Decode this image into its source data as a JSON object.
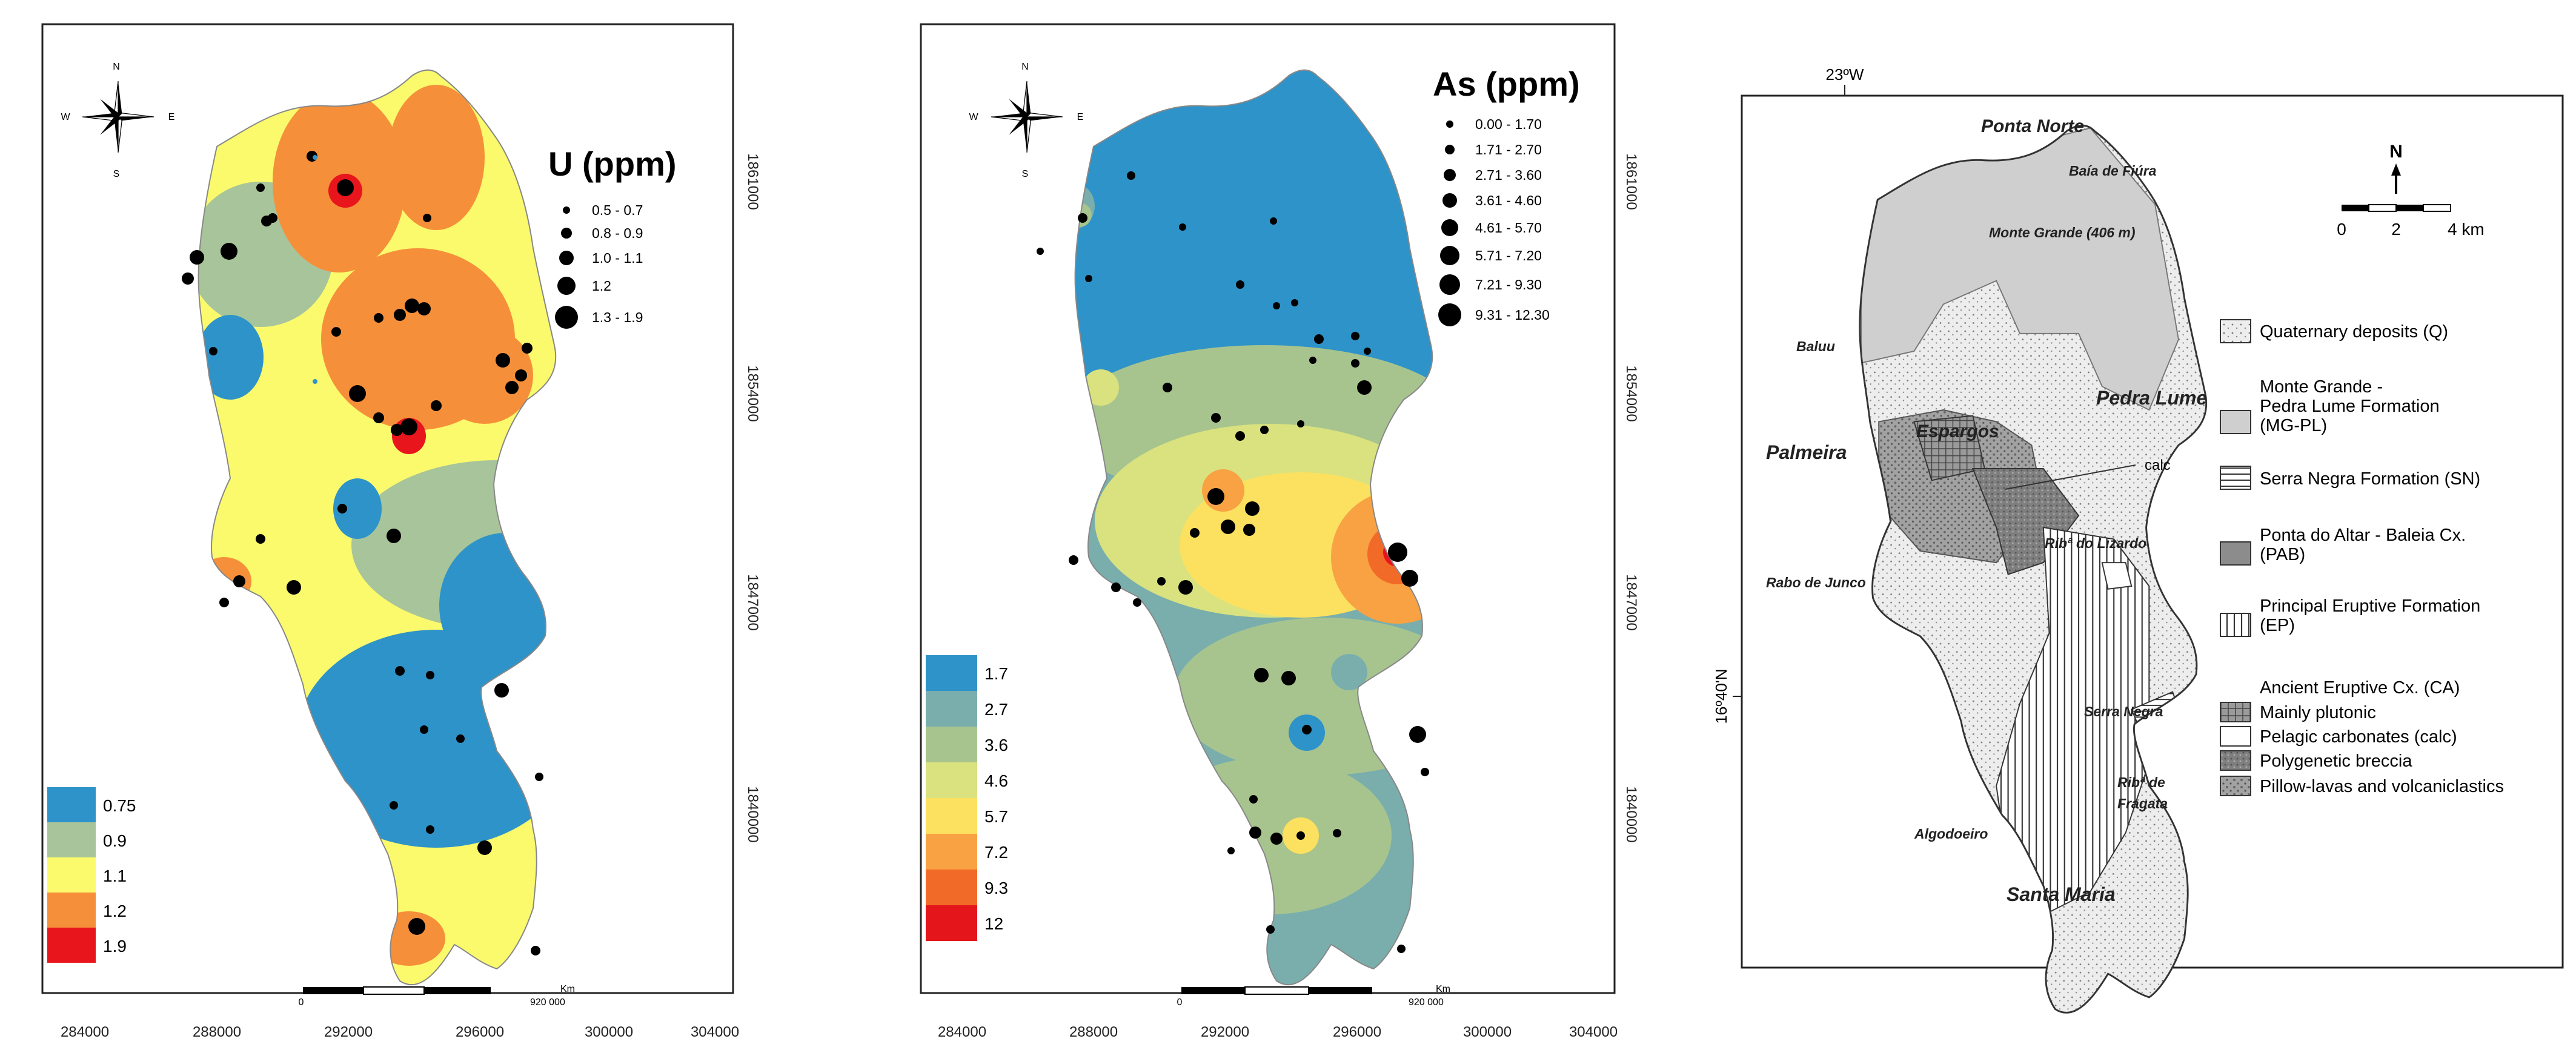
{
  "map_u": {
    "title": "U (ppm)",
    "symbol_legend": [
      "0.5 - 0.7",
      "0.8 - 0.9",
      "1.0 - 1.1",
      "1.2",
      "1.3 - 1.9"
    ],
    "color_legend": [
      {
        "label": "0.75",
        "color": "#2e93c8"
      },
      {
        "label": "0.9",
        "color": "#a8c49a"
      },
      {
        "label": "1.1",
        "color": "#fbfa6c"
      },
      {
        "label": "1.2",
        "color": "#f68f3a"
      },
      {
        "label": "1.9",
        "color": "#e8151c"
      }
    ],
    "x_ticks": [
      "284000",
      "288000",
      "292000",
      "296000",
      "300000",
      "304000"
    ],
    "y_ticks": [
      "1861000",
      "1854000",
      "1847000",
      "1840000"
    ],
    "scalebar": {
      "start": "0",
      "end": "920 000",
      "unit": "Km"
    },
    "compass": {
      "n": "N",
      "s": "S",
      "e": "E",
      "w": "W"
    }
  },
  "map_as": {
    "title": "As (ppm)",
    "symbol_legend": [
      "0.00 - 1.70",
      "1.71 - 2.70",
      "2.71 - 3.60",
      "3.61 - 4.60",
      "4.61 - 5.70",
      "5.71 - 7.20",
      "7.21 - 9.30",
      "9.31 - 12.30"
    ],
    "color_legend": [
      {
        "label": "1.7",
        "color": "#2e93c8"
      },
      {
        "label": "2.7",
        "color": "#79aead"
      },
      {
        "label": "3.6",
        "color": "#a8c48e"
      },
      {
        "label": "4.6",
        "color": "#d9e27e"
      },
      {
        "label": "5.7",
        "color": "#fbe15f"
      },
      {
        "label": "7.2",
        "color": "#f8a243"
      },
      {
        "label": "9.3",
        "color": "#f26a27"
      },
      {
        "label": "12",
        "color": "#e5151c"
      }
    ],
    "x_ticks": [
      "284000",
      "288000",
      "292000",
      "296000",
      "300000",
      "304000"
    ],
    "y_ticks": [
      "1861000",
      "1854000",
      "1847000",
      "1840000"
    ],
    "scalebar": {
      "start": "0",
      "end": "920 000",
      "unit": "Km"
    },
    "compass": {
      "n": "N",
      "s": "S",
      "e": "E",
      "w": "W"
    }
  },
  "geology": {
    "top_coord": "23ºW",
    "left_coord": "16º40'N",
    "north": "N",
    "scale_labels": [
      "0",
      "2",
      "4 km"
    ],
    "places": {
      "ponta_norte": "Ponta Norte",
      "baia_de_fiura": "Baía de Fiúra",
      "monte_grande": "Monte Grande (406 m)",
      "baluu": "Baluu",
      "pedra_lume": "Pedra Lume",
      "palmeira": "Palmeira",
      "espargos": "Espargos",
      "calc": "calc",
      "rib_lizardo": "Ribª do Lizardo",
      "rabo_de_junco": "Rabo de Junco",
      "serra_negra": "Serra Negra",
      "rib_fragata_1": "Ribª de",
      "rib_fragata_2": "Fragata",
      "algodoeiro": "Algodoeiro",
      "santa_maria": "Santa Maria"
    },
    "legend": {
      "q": "Quaternary deposits (Q)",
      "mgpl_1": "Monte Grande -",
      "mgpl_2": "Pedra Lume Formation",
      "mgpl_3": "(MG-PL)",
      "sn": "Serra Negra Formation (SN)",
      "pab_1": "Ponta do Altar - Baleia Cx.",
      "pab_2": "(PAB)",
      "ep_1": "Principal Eruptive Formation",
      "ep_2": "(EP)",
      "ca": "Ancient Eruptive Cx. (CA)",
      "plutonic": "Mainly plutonic",
      "carbonates": "Pelagic carbonates (calc)",
      "breccia": "Polygenetic breccia",
      "pillow": "Pillow-lavas and volcaniclastics"
    }
  }
}
